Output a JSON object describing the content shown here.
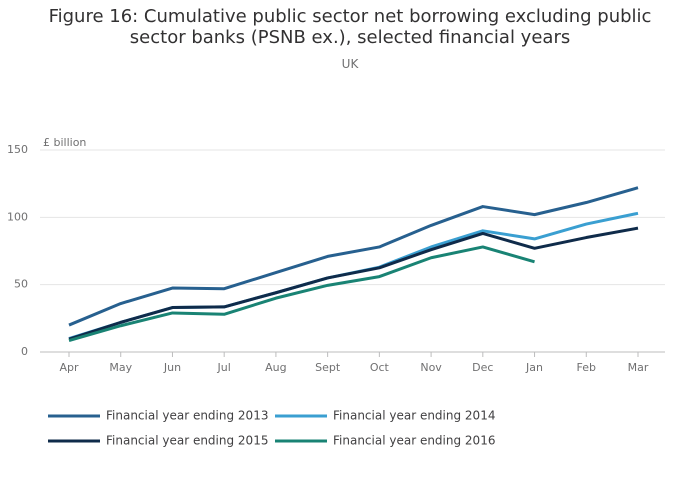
{
  "chart_data": {
    "type": "line",
    "title": "Figure 16: Cumulative public sector net borrowing excluding public sector banks (PSNB ex.), selected financial years",
    "subtitle": "UK",
    "y_axis_label": "£ billion",
    "categories": [
      "Apr",
      "May",
      "Jun",
      "Jul",
      "Aug",
      "Sept",
      "Oct",
      "Nov",
      "Dec",
      "Jan",
      "Feb",
      "Mar"
    ],
    "series": [
      {
        "name": "Financial year ending 2013",
        "color": "#27608f",
        "values": [
          20,
          36,
          47.5,
          47,
          59,
          71,
          78,
          94,
          108,
          102,
          111,
          122
        ]
      },
      {
        "name": "Financial year ending 2014",
        "color": "#3a9fd1",
        "values": [
          10,
          22,
          33,
          33.5,
          44,
          55,
          63,
          78,
          90,
          84,
          95,
          103
        ]
      },
      {
        "name": "Financial year ending 2015",
        "color": "#0f2b4a",
        "values": [
          9.5,
          22,
          33,
          33.5,
          44,
          55,
          62.5,
          76,
          88,
          77,
          85,
          92
        ]
      },
      {
        "name": "Financial year ending 2016",
        "color": "#198374",
        "values": [
          8.5,
          19.5,
          29,
          28,
          40,
          49.5,
          56,
          70,
          78,
          67,
          null,
          null
        ]
      }
    ],
    "ylim": [
      0,
      150
    ],
    "yticks": [
      0,
      50,
      100,
      150
    ],
    "grid": true
  }
}
